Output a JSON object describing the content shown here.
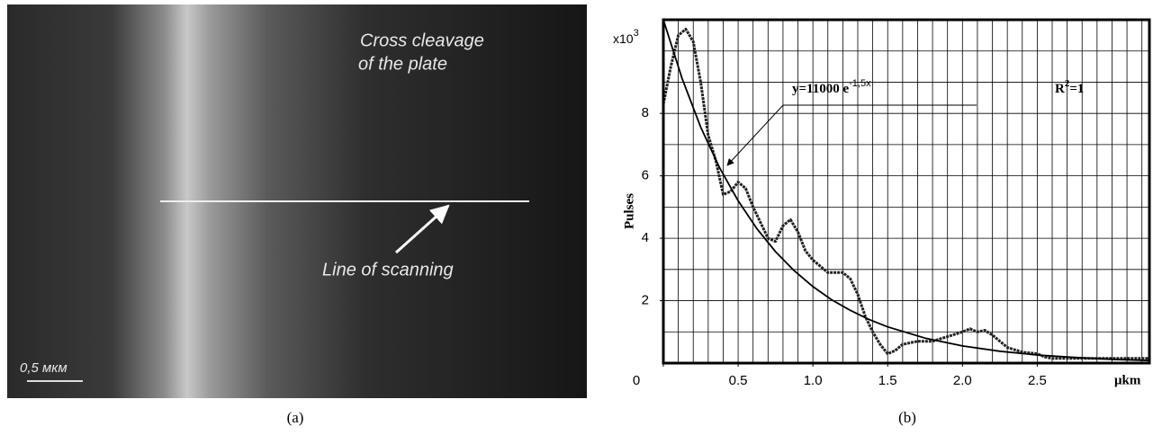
{
  "image": {
    "label_lines": [
      "Cross cleavage",
      "of the plate"
    ],
    "arrow_label": "Line of scanning",
    "scale_label": "0,5 мкм",
    "caption": "(a)"
  },
  "chart_data": {
    "type": "line",
    "caption": "(b)",
    "ylabel": "Pulses",
    "xlabel": "μkm",
    "yunit": {
      "base": "x10",
      "exponent": "3"
    },
    "annotations": [
      {
        "base": "y=11000 e",
        "exponent": "-1,5x"
      },
      {
        "base": "R",
        "exponent": "2",
        "rest": "=1"
      }
    ],
    "xlim": [
      0,
      3.25
    ],
    "ylim": [
      0,
      11
    ],
    "xticks": [
      0,
      0.5,
      {
        "value": 1,
        "label": "1.0"
      },
      1.5,
      {
        "value": 2,
        "label": "2.0"
      },
      2.5
    ],
    "yticks": [
      2,
      4,
      6,
      8
    ],
    "grid": true,
    "xgrid": [
      0.1,
      0.2,
      0.3,
      0.4,
      0.5,
      0.6,
      0.7,
      0.8,
      0.9,
      1.0,
      1.1,
      1.2,
      1.3,
      1.4,
      1.5,
      1.6,
      1.7,
      1.8,
      1.9,
      2.0,
      2.1,
      2.2,
      2.3,
      2.4,
      2.5,
      2.6,
      2.7,
      2.8,
      2.9,
      3.0,
      3.1,
      3.2
    ],
    "ygrid": [
      1,
      2,
      3,
      4,
      5,
      6,
      7,
      8,
      9,
      10
    ],
    "series": [
      {
        "color": "#222222",
        "marker": true,
        "x": [
          0,
          0.05,
          0.1,
          0.15,
          0.2,
          0.25,
          0.3,
          0.35,
          0.4,
          0.45,
          0.5,
          0.55,
          0.6,
          0.65,
          0.7,
          0.75,
          0.8,
          0.85,
          0.9,
          0.95,
          1.0,
          1.05,
          1.1,
          1.15,
          1.2,
          1.25,
          1.3,
          1.35,
          1.4,
          1.45,
          1.5,
          1.55,
          1.6,
          1.7,
          1.8,
          1.9,
          2.0,
          2.05,
          2.1,
          2.15,
          2.2,
          2.3,
          2.4,
          2.5,
          2.55,
          2.6,
          2.8,
          3.0,
          3.25
        ],
        "values": [
          8.3,
          9.5,
          10.5,
          10.7,
          10.3,
          9.0,
          7.3,
          6.5,
          5.4,
          5.5,
          5.8,
          5.6,
          5.0,
          4.5,
          4.0,
          3.9,
          4.4,
          4.6,
          4.2,
          3.6,
          3.3,
          3.1,
          2.9,
          2.9,
          2.9,
          2.7,
          2.2,
          1.5,
          1.0,
          0.6,
          0.3,
          0.4,
          0.6,
          0.7,
          0.7,
          0.85,
          1.0,
          1.1,
          1.0,
          1.05,
          0.9,
          0.5,
          0.35,
          0.3,
          0.2,
          0.15,
          0.15,
          0.15,
          0.15
        ]
      },
      {
        "color": "#000000",
        "marker": false,
        "x": [
          0,
          0.125,
          0.25,
          0.375,
          0.5,
          0.625,
          0.75,
          0.875,
          1.0,
          1.125,
          1.25,
          1.375,
          1.5,
          1.75,
          2.0,
          2.25,
          2.5,
          2.75,
          3.0,
          3.25
        ],
        "values": [
          11.0,
          9.12,
          7.56,
          6.27,
          5.2,
          4.31,
          3.57,
          2.96,
          2.45,
          2.03,
          1.69,
          1.4,
          1.16,
          0.8,
          0.55,
          0.38,
          0.26,
          0.18,
          0.12,
          0.08
        ]
      }
    ]
  }
}
